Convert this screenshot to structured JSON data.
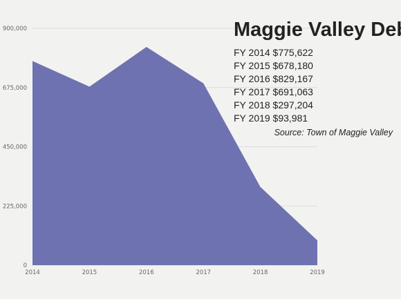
{
  "chart_data": {
    "type": "area",
    "title": "Maggie Valley Debt",
    "x": [
      "2014",
      "2015",
      "2016",
      "2017",
      "2018",
      "2019"
    ],
    "series": [
      {
        "values": [
          775622,
          678180,
          829167,
          691063,
          297204,
          93981
        ]
      }
    ],
    "ylim": [
      0,
      900000
    ],
    "yticks": [
      "0",
      "225,000",
      "450,000",
      "675,000",
      "900,000"
    ],
    "ytick_values": [
      0,
      225000,
      450000,
      675000,
      900000
    ],
    "grid": true,
    "fill_color": "#6e72b0",
    "annotations": {
      "lines": [
        "FY 2014  $775,622",
        "FY 2015  $678,180",
        "FY 2016  $829,167",
        "FY 2017  $691,063",
        "FY 2018  $297,204",
        "FY 2019   $93,981"
      ],
      "source": "Source: Town of Maggie Valley"
    }
  }
}
